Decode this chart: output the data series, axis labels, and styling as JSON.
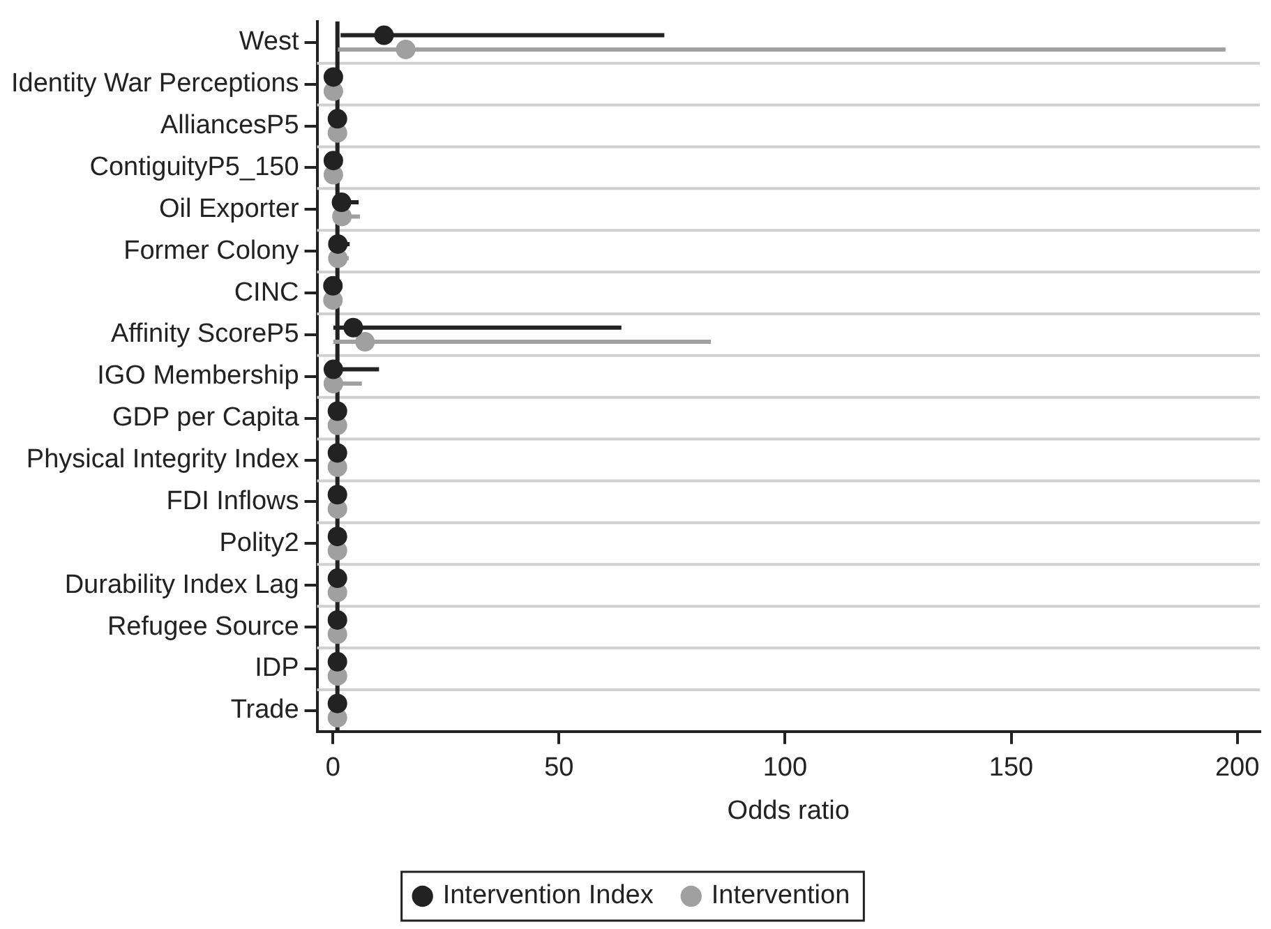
{
  "chart_data": {
    "type": "scatter",
    "orientation": "horizontal",
    "xlabel": "Odds ratio",
    "categories": [
      "West",
      "Identity War Perceptions",
      "AlliancesP5",
      "ContiguityP5_150",
      "Oil Exporter",
      "Former Colony",
      "CINC",
      "Affinity ScoreP5",
      "IGO Membership",
      "GDP per Capita",
      "Physical Integrity Index",
      "FDI Inflows",
      "Polity2",
      "Durability Index Lag",
      "Refugee Source",
      "IDP",
      "Trade"
    ],
    "series": [
      {
        "name": "Intervention Index",
        "color": "#222222",
        "values": [
          11.3,
          0.1,
          1,
          0.1,
          1.9,
          1.1,
          0,
          4.5,
          0.1,
          1,
          1,
          1,
          1,
          1,
          1,
          1,
          1
        ],
        "errors": [
          [
            1.7,
            73.3
          ],
          null,
          [
            0.5,
            3
          ],
          null,
          [
            0.5,
            5.7
          ],
          [
            0.5,
            3.7
          ],
          null,
          [
            0.1,
            63.8
          ],
          [
            0.1,
            10.2
          ],
          null,
          null,
          null,
          null,
          null,
          null,
          null,
          null
        ]
      },
      {
        "name": "Intervention",
        "color": "#a0a0a0",
        "values": [
          16.1,
          0.1,
          1,
          0.1,
          2,
          1.1,
          0,
          7.1,
          0.1,
          1,
          1,
          1,
          1,
          1,
          1,
          1,
          1
        ],
        "errors": [
          [
            1.1,
            197.4
          ],
          null,
          [
            0.5,
            2.5
          ],
          null,
          [
            0.5,
            6
          ],
          [
            0.5,
            3.5
          ],
          null,
          [
            0.1,
            83.6
          ],
          [
            0.1,
            6.4
          ],
          null,
          null,
          null,
          null,
          null,
          null,
          null,
          null
        ]
      }
    ],
    "xlim": [
      -3.5,
      205
    ],
    "xticks": [
      0,
      50,
      100,
      150,
      200
    ],
    "ref_lines": [
      {
        "axis": "x",
        "value": 1,
        "color": "#222222"
      }
    ],
    "grid": "y",
    "legend": "bottom",
    "marker": "circle"
  }
}
